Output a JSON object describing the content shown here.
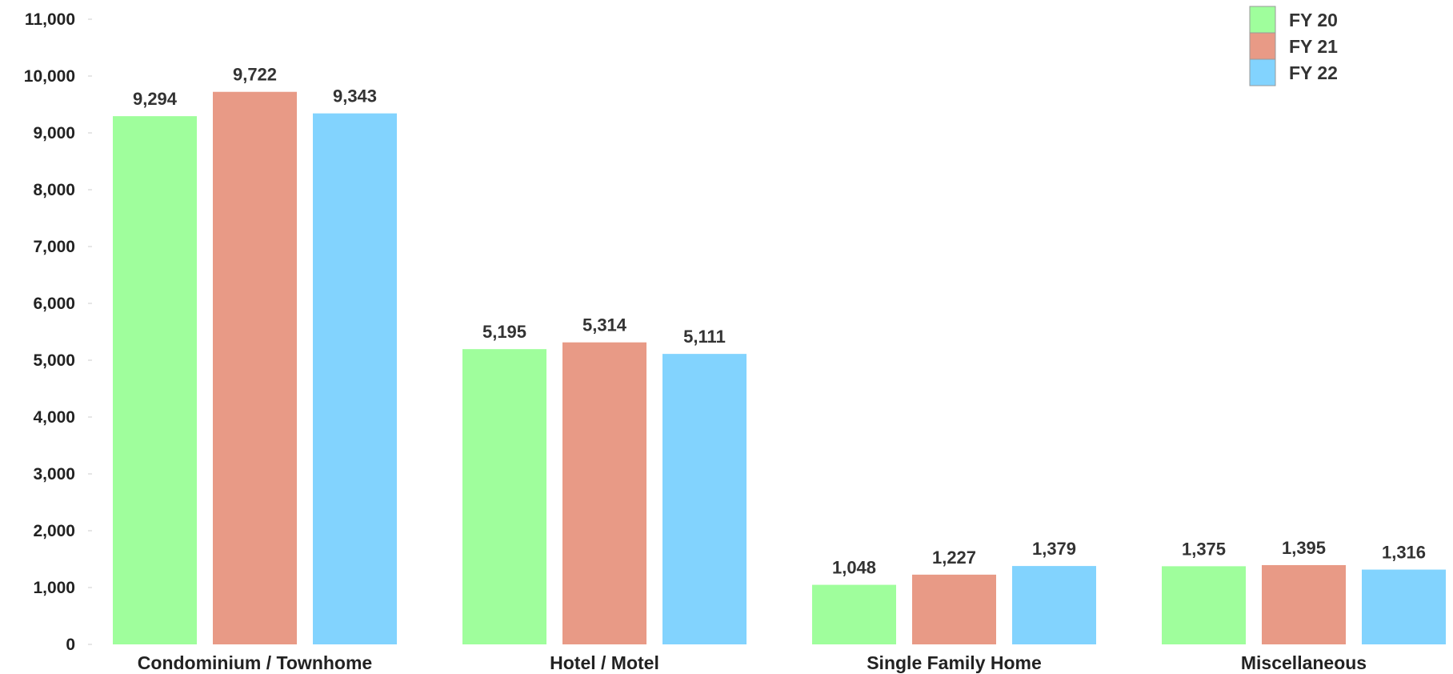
{
  "chart_data": {
    "type": "bar",
    "title": "",
    "xlabel": "",
    "ylabel": "",
    "categories": [
      "Condominium / Townhome",
      "Hotel / Motel",
      "Single Family Home",
      "Miscellaneous"
    ],
    "series": [
      {
        "name": "FY 20",
        "color": "#9ffe9c",
        "values": [
          9294,
          5195,
          1048,
          1375
        ],
        "labels": [
          "9,294",
          "5,195",
          "1,048",
          "1,375"
        ]
      },
      {
        "name": "FY 21",
        "color": "#e89a86",
        "values": [
          9722,
          5314,
          1227,
          1395
        ],
        "labels": [
          "9,722",
          "5,314",
          "1,227",
          "1,395"
        ]
      },
      {
        "name": "FY 22",
        "color": "#82d3fe",
        "values": [
          9343,
          5111,
          1379,
          1316
        ],
        "labels": [
          "9,343",
          "5,111",
          "1,379",
          "1,316"
        ]
      }
    ],
    "ylim": [
      0,
      11000
    ],
    "yticks": [
      0,
      1000,
      2000,
      3000,
      4000,
      5000,
      6000,
      7000,
      8000,
      9000,
      10000,
      11000
    ],
    "ytick_labels": [
      "0",
      "1,000",
      "2,000",
      "3,000",
      "4,000",
      "5,000",
      "6,000",
      "7,000",
      "8,000",
      "9,000",
      "10,000",
      "11,000"
    ],
    "grid": false,
    "legend_position": "top-right"
  }
}
